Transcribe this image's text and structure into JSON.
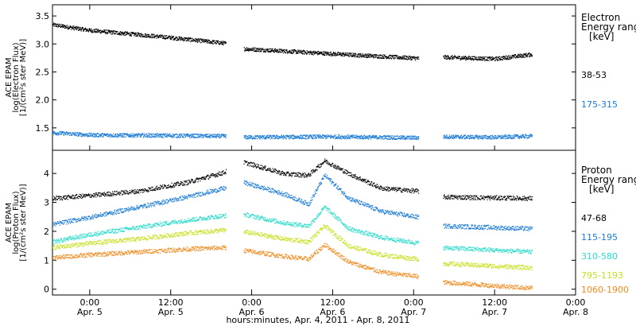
{
  "x_axis": {
    "label": "hours:minutes, Apr.  4, 2011 - Apr.  8, 2011",
    "ticks": [
      {
        "t": 1.0,
        "time": "0:00",
        "date": "Apr. 5"
      },
      {
        "t": 1.5,
        "time": "12:00",
        "date": "Apr. 5"
      },
      {
        "t": 2.0,
        "time": "0:00",
        "date": "Apr. 6"
      },
      {
        "t": 2.5,
        "time": "12:00",
        "date": "Apr. 6"
      },
      {
        "t": 3.0,
        "time": "0:00",
        "date": "Apr. 7"
      },
      {
        "t": 3.5,
        "time": "12:00",
        "date": "Apr. 7"
      },
      {
        "t": 4.0,
        "time": "0:00",
        "date": "Apr. 8"
      }
    ],
    "range_days": [
      0.77,
      4.0
    ]
  },
  "chart_data": [
    {
      "type": "scatter",
      "ylabel_lines": [
        "ACE EPAM",
        "log(Electron Flux)",
        "[1/(cm²s ster MeV)]"
      ],
      "legend_title_lines": [
        "Electron",
        "Energy range",
        "[keV]"
      ],
      "ylim": [
        1.1,
        3.7
      ],
      "yticks": [
        "1.5",
        "2.0",
        "2.5",
        "3.0",
        "3.5"
      ],
      "gaps": [
        [
          1.84,
          1.95
        ],
        [
          3.03,
          3.18
        ]
      ],
      "series": [
        {
          "name": "38-53",
          "color": "#000000",
          "x": [
            0.77,
            1.0,
            1.5,
            1.83,
            1.95,
            2.5,
            3.03,
            3.18,
            3.5,
            3.73
          ],
          "y": [
            3.35,
            3.25,
            3.12,
            3.02,
            2.92,
            2.83,
            2.75,
            2.77,
            2.74,
            2.82
          ]
        },
        {
          "name": "175-315",
          "color": "#1a7bd8",
          "x": [
            0.77,
            1.0,
            1.5,
            1.83,
            1.95,
            2.5,
            3.03,
            3.18,
            3.5,
            3.73
          ],
          "y": [
            1.42,
            1.38,
            1.37,
            1.36,
            1.34,
            1.35,
            1.33,
            1.35,
            1.34,
            1.36
          ]
        }
      ]
    },
    {
      "type": "scatter",
      "ylabel_lines": [
        "ACE EPAM",
        "log(Proton Flux)",
        "[1/(cm²s ster MeV)]"
      ],
      "legend_title_lines": [
        "Proton",
        "Energy range",
        "[keV]"
      ],
      "ylim": [
        -0.2,
        4.8
      ],
      "yticks": [
        "0",
        "1",
        "2",
        "3",
        "4"
      ],
      "gaps": [
        [
          1.84,
          1.95
        ],
        [
          3.03,
          3.18
        ]
      ],
      "series": [
        {
          "name": "47-68",
          "color": "#000000",
          "x": [
            0.77,
            1.0,
            1.3,
            1.6,
            1.83,
            1.95,
            2.2,
            2.35,
            2.45,
            2.6,
            2.8,
            3.03,
            3.18,
            3.73
          ],
          "y": [
            3.15,
            3.25,
            3.4,
            3.7,
            4.05,
            4.4,
            4.0,
            3.95,
            4.45,
            4.0,
            3.5,
            3.4,
            3.2,
            3.15
          ]
        },
        {
          "name": "115-195",
          "color": "#1a7bd8",
          "x": [
            0.77,
            1.0,
            1.3,
            1.6,
            1.83,
            1.95,
            2.2,
            2.35,
            2.45,
            2.6,
            2.8,
            3.03,
            3.18,
            3.73
          ],
          "y": [
            2.25,
            2.5,
            2.85,
            3.2,
            3.5,
            3.7,
            3.3,
            2.95,
            3.95,
            3.15,
            2.7,
            2.5,
            2.2,
            2.1
          ]
        },
        {
          "name": "310-580",
          "color": "#28dccb",
          "x": [
            0.77,
            1.0,
            1.3,
            1.6,
            1.83,
            1.95,
            2.2,
            2.35,
            2.45,
            2.6,
            2.8,
            3.03,
            3.18,
            3.73
          ],
          "y": [
            1.65,
            1.9,
            2.15,
            2.4,
            2.55,
            2.6,
            2.3,
            2.2,
            2.85,
            2.1,
            1.8,
            1.6,
            1.45,
            1.3
          ]
        },
        {
          "name": "795-1193",
          "color": "#c8e01e",
          "x": [
            0.77,
            1.0,
            1.3,
            1.6,
            1.83,
            1.95,
            2.2,
            2.35,
            2.45,
            2.6,
            2.8,
            3.03,
            3.18,
            3.73
          ],
          "y": [
            1.45,
            1.6,
            1.75,
            1.95,
            2.05,
            2.0,
            1.75,
            1.65,
            2.2,
            1.5,
            1.2,
            1.05,
            0.9,
            0.75
          ]
        },
        {
          "name": "1060-1900",
          "color": "#f08a1e",
          "x": [
            0.77,
            1.0,
            1.3,
            1.6,
            1.83,
            1.95,
            2.2,
            2.35,
            2.45,
            2.6,
            2.8,
            3.03,
            3.18,
            3.73
          ],
          "y": [
            1.1,
            1.2,
            1.3,
            1.4,
            1.45,
            1.35,
            1.15,
            1.05,
            1.55,
            0.95,
            0.6,
            0.45,
            0.25,
            0.05
          ]
        }
      ]
    }
  ]
}
